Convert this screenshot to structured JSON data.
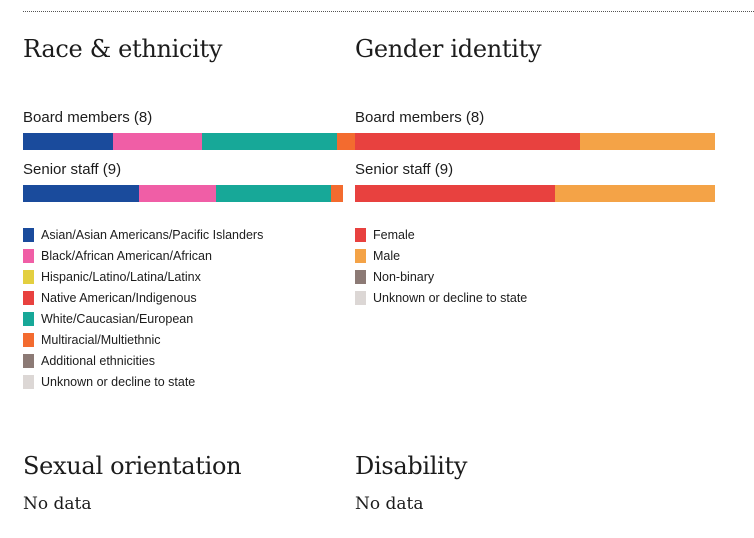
{
  "colors": {
    "asian": "#1a4b9c",
    "black": "#f05ea6",
    "hispanic": "#e3cf40",
    "native": "#e8413f",
    "white": "#17a898",
    "multiracial": "#f36b2f",
    "additional": "#8c7a75",
    "unknown": "#dcd7d5",
    "female": "#e8413f",
    "male": "#f4a347",
    "nonbinary": "#8c7a75",
    "gender_unknown": "#dcd7d5"
  },
  "race": {
    "title": "Race & ethnicity",
    "board": {
      "label": "Board members (8)",
      "segments": [
        {
          "key": "asian",
          "value": 2
        },
        {
          "key": "black",
          "value": 2
        },
        {
          "key": "white",
          "value": 3
        },
        {
          "key": "multiracial",
          "value": 0.4
        }
      ]
    },
    "staff": {
      "label": "Senior staff (9)",
      "segments": [
        {
          "key": "asian",
          "value": 3
        },
        {
          "key": "black",
          "value": 2
        },
        {
          "key": "white",
          "value": 3
        },
        {
          "key": "multiracial",
          "value": 0.3
        }
      ]
    },
    "legend": [
      {
        "key": "asian",
        "label": "Asian/Asian Americans/Pacific Islanders"
      },
      {
        "key": "black",
        "label": "Black/African American/African"
      },
      {
        "key": "hispanic",
        "label": "Hispanic/Latino/Latina/Latinx"
      },
      {
        "key": "native",
        "label": "Native American/Indigenous"
      },
      {
        "key": "white",
        "label": "White/Caucasian/European"
      },
      {
        "key": "multiracial",
        "label": "Multiracial/Multiethnic"
      },
      {
        "key": "additional",
        "label": "Additional ethnicities"
      },
      {
        "key": "unknown",
        "label": "Unknown or decline to state"
      }
    ]
  },
  "gender": {
    "title": "Gender identity",
    "board": {
      "label": "Board members (8)",
      "segments": [
        {
          "key": "female",
          "value": 5
        },
        {
          "key": "male",
          "value": 3
        }
      ]
    },
    "staff": {
      "label": "Senior staff (9)",
      "segments": [
        {
          "key": "female",
          "value": 5
        },
        {
          "key": "male",
          "value": 4
        }
      ]
    },
    "legend": [
      {
        "key": "female",
        "label": "Female"
      },
      {
        "key": "male",
        "label": "Male"
      },
      {
        "key": "nonbinary",
        "label": "Non-binary"
      },
      {
        "key": "gender_unknown",
        "label": "Unknown or decline to state"
      }
    ]
  },
  "sexual_orientation": {
    "title": "Sexual orientation",
    "text": "No data"
  },
  "disability": {
    "title": "Disability",
    "text": "No data"
  },
  "chart_data": [
    {
      "type": "bar",
      "title": "Race & ethnicity",
      "categories": [
        "Board members (8)",
        "Senior staff (9)"
      ],
      "series": [
        {
          "name": "Asian/Asian Americans/Pacific Islanders",
          "values": [
            2,
            3
          ]
        },
        {
          "name": "Black/African American/African",
          "values": [
            2,
            2
          ]
        },
        {
          "name": "White/Caucasian/European",
          "values": [
            3,
            3
          ]
        },
        {
          "name": "Multiracial/Multiethnic",
          "values": [
            0.4,
            0.3
          ]
        }
      ]
    },
    {
      "type": "bar",
      "title": "Gender identity",
      "categories": [
        "Board members (8)",
        "Senior staff (9)"
      ],
      "series": [
        {
          "name": "Female",
          "values": [
            5,
            5
          ]
        },
        {
          "name": "Male",
          "values": [
            3,
            4
          ]
        }
      ]
    }
  ]
}
